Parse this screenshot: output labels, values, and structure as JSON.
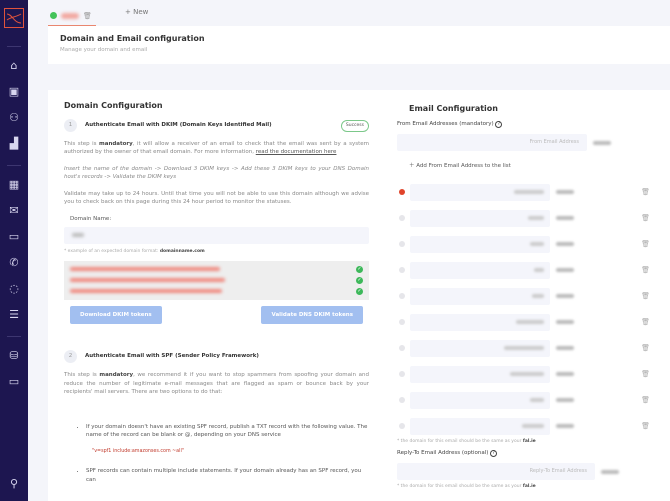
{
  "tabbar": {
    "new_label": "+ New"
  },
  "header": {
    "title": "Domain and Email configuration",
    "subtitle": "Manage your domain and email"
  },
  "sidebar": {
    "items": [
      "home-icon",
      "contacts-icon",
      "users-icon",
      "chart-icon",
      "calendar-icon",
      "mail-icon",
      "chat-icon",
      "viber-icon",
      "whatsapp-icon",
      "checklist-icon",
      "database-icon",
      "folder-icon",
      "user-settings-icon"
    ]
  },
  "domain": {
    "title": "Domain Configuration",
    "step1": {
      "num": "1",
      "title": "Authenticate Email with DKIM (Domain Keys Identified Mail)",
      "status": "Success",
      "p1_a": "This step is ",
      "p1_b": "mandatory",
      "p1_c": ", it will allow a receiver of an email to check that the email was sent by a system authorized by the owner of that email domain. For more information, ",
      "p1_link": "read the documentation here",
      "p2": "Insert the name of the domain -> Download 3 DKIM keys -> Add these 3 DKIM keys to your DNS Domain host's records -> Validate the DKIM keys",
      "p3": "Validate may take up to 24 hours. Until that time you will not be able to use this domain although we advise you to check back on this page during this 24 hour period to monitor the statuses.",
      "domain_label": "Domain Name:",
      "example_a": "* example of an expected domain format: ",
      "example_b": "domainname.com",
      "download_label": "Download DKIM tokens",
      "validate_label": "Validate DNS DKIM tokens"
    },
    "step2": {
      "num": "2",
      "title": "Authenticate Email with SPF (Sender Policy Framework)",
      "p1_a": "This step is ",
      "p1_b": "mandatory",
      "p1_c": ", we recommend it if you want to stop spammers from spoofing your domain and reduce the number of legitimate e-mail messages that are flagged as spam or bounce back by your recipients' mail servers. There are two options to do that:",
      "bullet1": "If your domain doesn't have an existing SPF record, publish a TXT record with the following value. The name of the record can be blank or @, depending on your DNS service",
      "code": "\"v=spf1 include:amazonses.com ~all\"",
      "bullet2": "SPF records can contain multiple include statements. If your domain already has an SPF record, you can"
    }
  },
  "email": {
    "title": "Email Configuration",
    "from_label": "From Email Addresses (mandatory)",
    "from_placeholder": "From Email Address",
    "add_label": "Add From Email Address to the list",
    "note_a": "* the domain for this email should be the same as your ",
    "note_b": "fal.ie",
    "reply_label": "Reply-To Email Address (optional)",
    "reply_placeholder": "Reply-To Email Address",
    "rows": 10,
    "accent": "#e0442a"
  }
}
